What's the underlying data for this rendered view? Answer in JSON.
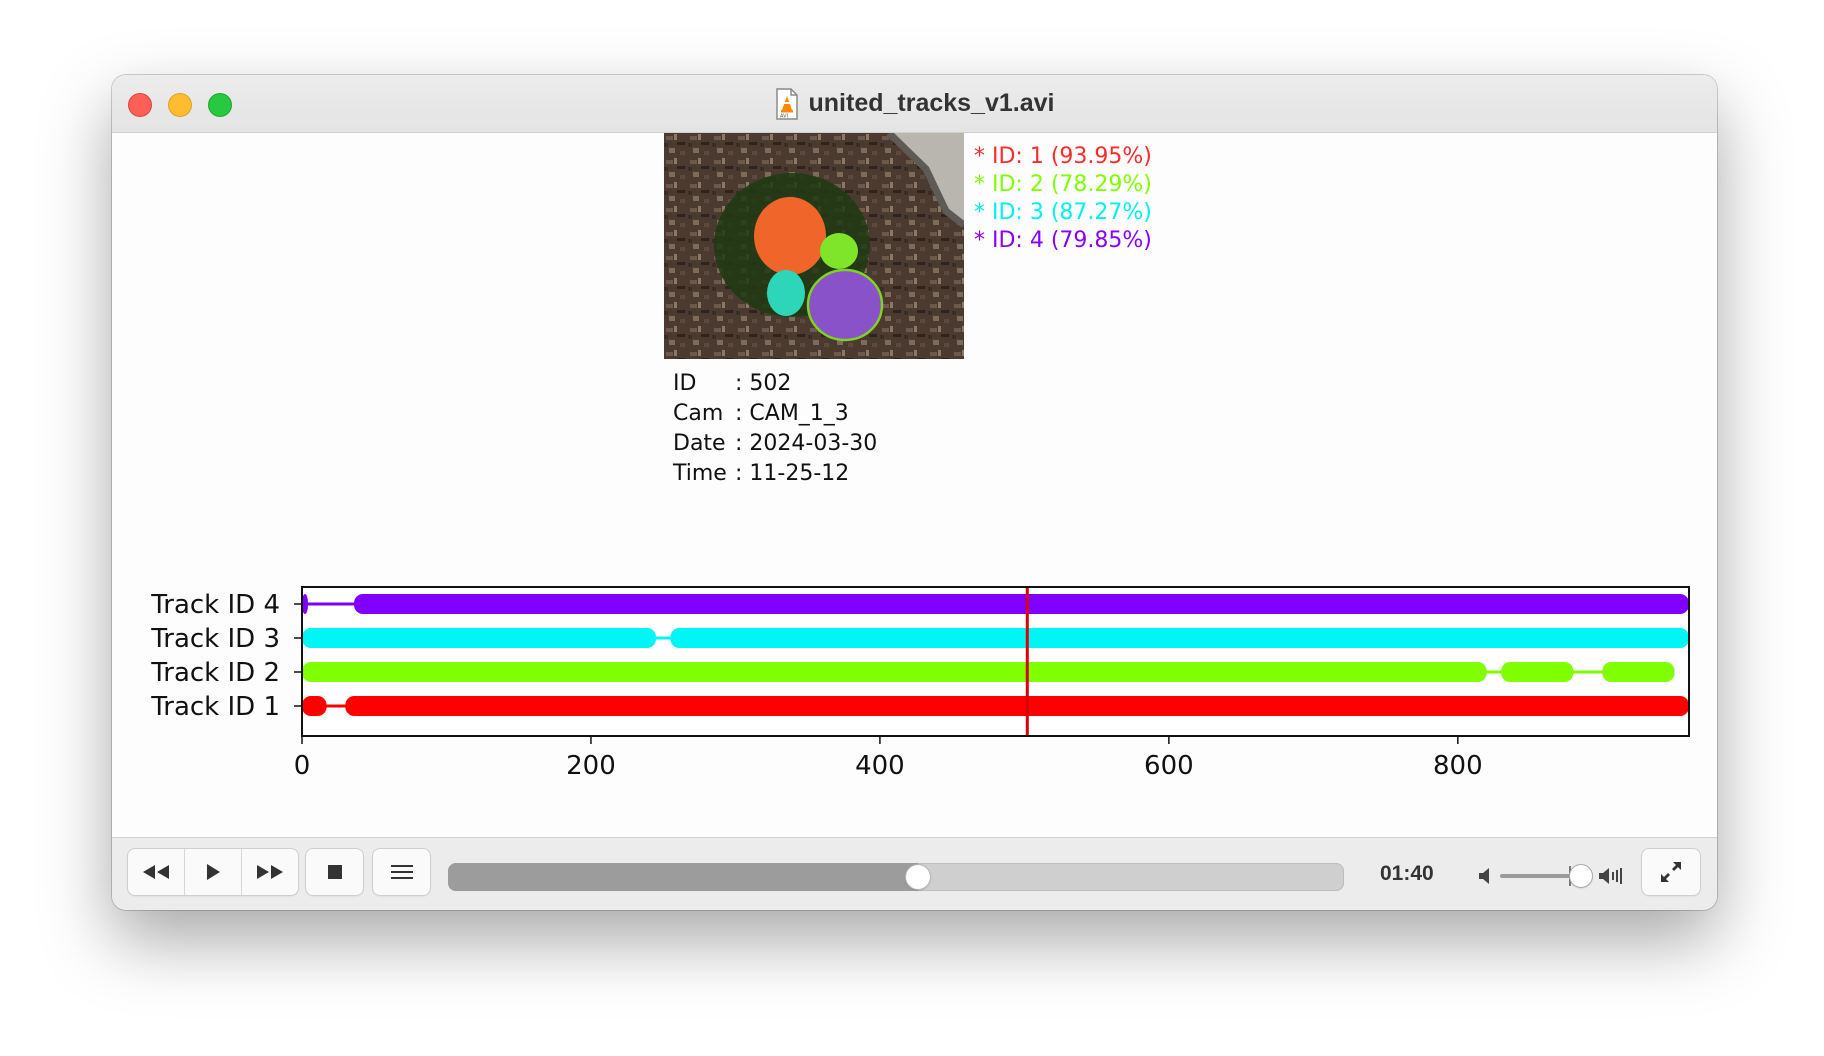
{
  "window": {
    "title": "united_tracks_v1.avi"
  },
  "detections": [
    {
      "label": "* ID:  1 (93.95%)",
      "color": "#ff2a2a"
    },
    {
      "label": "* ID:  2 (78.29%)",
      "color": "#7fff00"
    },
    {
      "label": "* ID:  3 (87.27%)",
      "color": "#00f0f0"
    },
    {
      "label": "* ID:  4 (79.85%)",
      "color": "#8a00ff"
    }
  ],
  "metadata": {
    "id": {
      "key": "ID",
      "value": ": 502"
    },
    "cam": {
      "key": "Cam",
      "value": ": CAM_1_3"
    },
    "date": {
      "key": "Date",
      "value": ": 2024-03-30"
    },
    "time": {
      "key": "Time",
      "value": ": 11-25-12"
    }
  },
  "chart_data": {
    "type": "line",
    "xlim": [
      0,
      960
    ],
    "x_ticks": [
      0,
      200,
      400,
      600,
      800
    ],
    "current_frame": 502,
    "current_frame_color": "#dd0000",
    "series": [
      {
        "name": "Track ID 1",
        "color": "#ff0000",
        "segments": [
          [
            0,
            17
          ],
          [
            30,
            960
          ]
        ]
      },
      {
        "name": "Track ID 2",
        "color": "#7fff00",
        "segments": [
          [
            0,
            820
          ],
          [
            830,
            880
          ],
          [
            900,
            950
          ]
        ]
      },
      {
        "name": "Track ID 3",
        "color": "#00f5f5",
        "segments": [
          [
            0,
            245
          ],
          [
            255,
            960
          ]
        ]
      },
      {
        "name": "Track ID 4",
        "color": "#8000ff",
        "segments": [
          [
            0,
            4
          ],
          [
            36,
            960
          ]
        ]
      }
    ]
  },
  "controls": {
    "time_label": "01:40",
    "progress": 0.525,
    "volume": 0.8
  },
  "icons": [
    "rewind-icon",
    "play-icon",
    "fast-forward-icon",
    "stop-icon",
    "playlist-icon",
    "volume-low-icon",
    "volume-high-icon",
    "fullscreen-icon",
    "file-icon"
  ]
}
